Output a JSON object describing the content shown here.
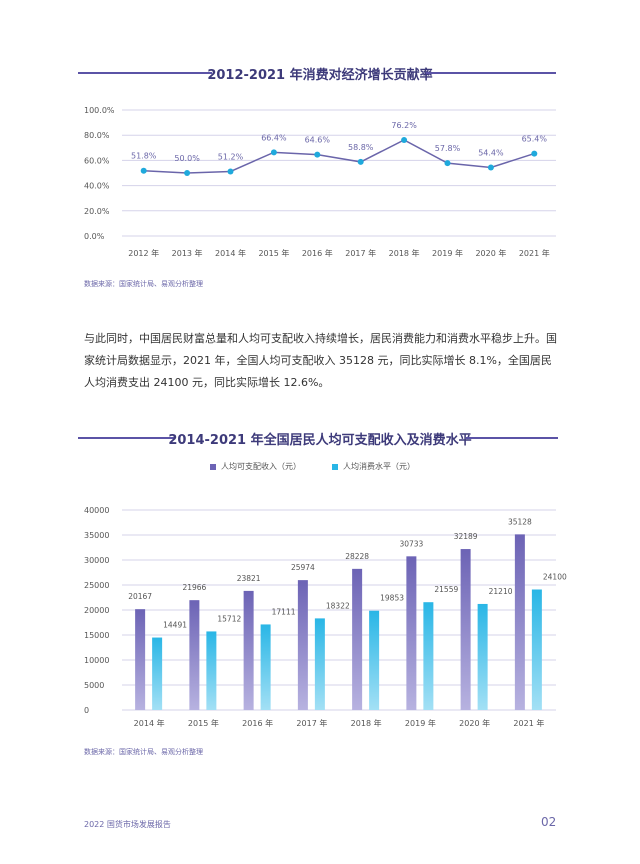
{
  "chart1": {
    "title": "2012-2021 年消费对经济增长贡献率",
    "source": "数据来源：国家统计局、易观分析整理",
    "chart_data": {
      "type": "line",
      "categories": [
        "2012 年",
        "2013 年",
        "2014 年",
        "2015 年",
        "2016 年",
        "2017 年",
        "2018 年",
        "2019 年",
        "2020 年",
        "2021 年"
      ],
      "values": [
        51.8,
        50.0,
        51.2,
        66.4,
        64.6,
        58.8,
        76.2,
        57.8,
        54.4,
        65.4
      ],
      "value_labels": [
        "51.8%",
        "50.0%",
        "51.2%",
        "66.4%",
        "64.6%",
        "58.8%",
        "76.2%",
        "57.8%",
        "54.4%",
        "65.4%"
      ],
      "y_ticks": [
        "100.0%",
        "80.0%",
        "60.0%",
        "40.0%",
        "20.0%",
        "0.0%"
      ],
      "ylim": [
        0,
        100
      ],
      "grid": true,
      "line_color": "#6a65aa",
      "marker_color": "#1fa9dc"
    }
  },
  "paragraph": "与此同时，中国居民财富总量和人均可支配收入持续增长，居民消费能力和消费水平稳步上升。国家统计局数据显示，2021 年，全国人均可支配收入 35128 元，同比实际增长 8.1%，全国居民人均消费支出 24100 元，同比实际增长 12.6%。",
  "chart2": {
    "title": "2014-2021 年全国居民人均可支配收入及消费水平",
    "source": "数据来源：国家统计局、易观分析整理",
    "chart_data": {
      "type": "bar",
      "categories": [
        "2014 年",
        "2015 年",
        "2016 年",
        "2017 年",
        "2018 年",
        "2019 年",
        "2020 年",
        "2021 年"
      ],
      "series": [
        {
          "name": "人均可支配收入（元）",
          "values": [
            20167,
            21966,
            23821,
            25974,
            28228,
            30733,
            32189,
            35128
          ],
          "color": "#6c63b5"
        },
        {
          "name": "人均消费水平（元）",
          "values": [
            14491,
            15712,
            17111,
            18322,
            19853,
            21559,
            21210,
            24100
          ],
          "color": "#29b6e6"
        }
      ],
      "y_ticks": [
        "40000",
        "35000",
        "30000",
        "25000",
        "20000",
        "15000",
        "10000",
        "5000",
        "0"
      ],
      "ylim": [
        0,
        40000
      ],
      "grid": true,
      "legend_position": "top-left"
    }
  },
  "footer": {
    "left": "2022 国货市场发展报告",
    "page": "02"
  }
}
